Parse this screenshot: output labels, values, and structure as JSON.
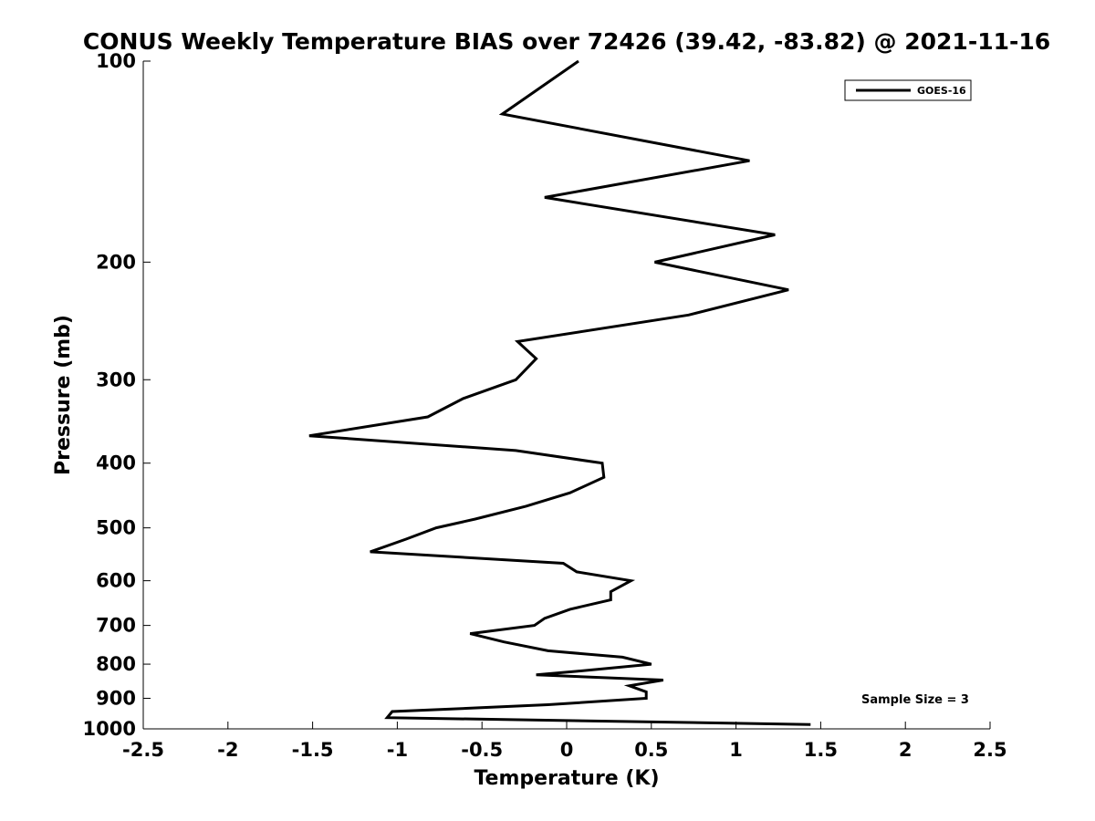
{
  "chart_data": {
    "type": "line",
    "title": "CONUS Weekly Temperature BIAS over 72426 (39.42, -83.82) @ 2021-11-16",
    "xlabel": "Temperature (K)",
    "ylabel": "Pressure (mb)",
    "xlim": [
      -2.5,
      2.5
    ],
    "ylim": [
      100,
      1000
    ],
    "y_scale": "log",
    "y_reversed": true,
    "grid": false,
    "legend_position": "top-right",
    "x_ticks": [
      "-2.5",
      "-2",
      "-1.5",
      "-1",
      "-0.5",
      "0",
      "0.5",
      "1",
      "1.5",
      "2",
      "2.5"
    ],
    "y_ticks": [
      "100",
      "200",
      "300",
      "400",
      "500",
      "600",
      "700",
      "800",
      "900",
      "1000"
    ],
    "annotation": "Sample Size = 3",
    "series": [
      {
        "name": "GOES-16",
        "color": "#000000",
        "points": [
          {
            "x": 0.07,
            "y": 100
          },
          {
            "x": -0.38,
            "y": 120
          },
          {
            "x": 1.08,
            "y": 141
          },
          {
            "x": -0.13,
            "y": 160
          },
          {
            "x": 1.23,
            "y": 182
          },
          {
            "x": 0.52,
            "y": 200
          },
          {
            "x": 1.31,
            "y": 220
          },
          {
            "x": 0.72,
            "y": 240
          },
          {
            "x": -0.29,
            "y": 263
          },
          {
            "x": -0.18,
            "y": 279
          },
          {
            "x": -0.3,
            "y": 300
          },
          {
            "x": -0.61,
            "y": 320
          },
          {
            "x": -0.82,
            "y": 341
          },
          {
            "x": -1.52,
            "y": 364
          },
          {
            "x": -0.3,
            "y": 383
          },
          {
            "x": 0.21,
            "y": 400
          },
          {
            "x": 0.22,
            "y": 420
          },
          {
            "x": 0.02,
            "y": 443
          },
          {
            "x": -0.24,
            "y": 464
          },
          {
            "x": -0.54,
            "y": 485
          },
          {
            "x": -0.77,
            "y": 500
          },
          {
            "x": -0.95,
            "y": 520
          },
          {
            "x": -1.16,
            "y": 543
          },
          {
            "x": -0.02,
            "y": 565
          },
          {
            "x": 0.06,
            "y": 582
          },
          {
            "x": 0.38,
            "y": 600
          },
          {
            "x": 0.26,
            "y": 623
          },
          {
            "x": 0.26,
            "y": 641
          },
          {
            "x": 0.02,
            "y": 662
          },
          {
            "x": -0.13,
            "y": 683
          },
          {
            "x": -0.19,
            "y": 700
          },
          {
            "x": -0.57,
            "y": 720
          },
          {
            "x": -0.37,
            "y": 741
          },
          {
            "x": -0.11,
            "y": 764
          },
          {
            "x": 0.33,
            "y": 781
          },
          {
            "x": 0.5,
            "y": 800
          },
          {
            "x": 0.06,
            "y": 820
          },
          {
            "x": -0.18,
            "y": 830
          },
          {
            "x": 0.57,
            "y": 845
          },
          {
            "x": 0.37,
            "y": 862
          },
          {
            "x": 0.47,
            "y": 880
          },
          {
            "x": 0.47,
            "y": 900
          },
          {
            "x": -0.11,
            "y": 920
          },
          {
            "x": -0.52,
            "y": 930
          },
          {
            "x": -1.03,
            "y": 942
          },
          {
            "x": -1.06,
            "y": 962
          },
          {
            "x": 1.44,
            "y": 985
          }
        ]
      }
    ]
  }
}
